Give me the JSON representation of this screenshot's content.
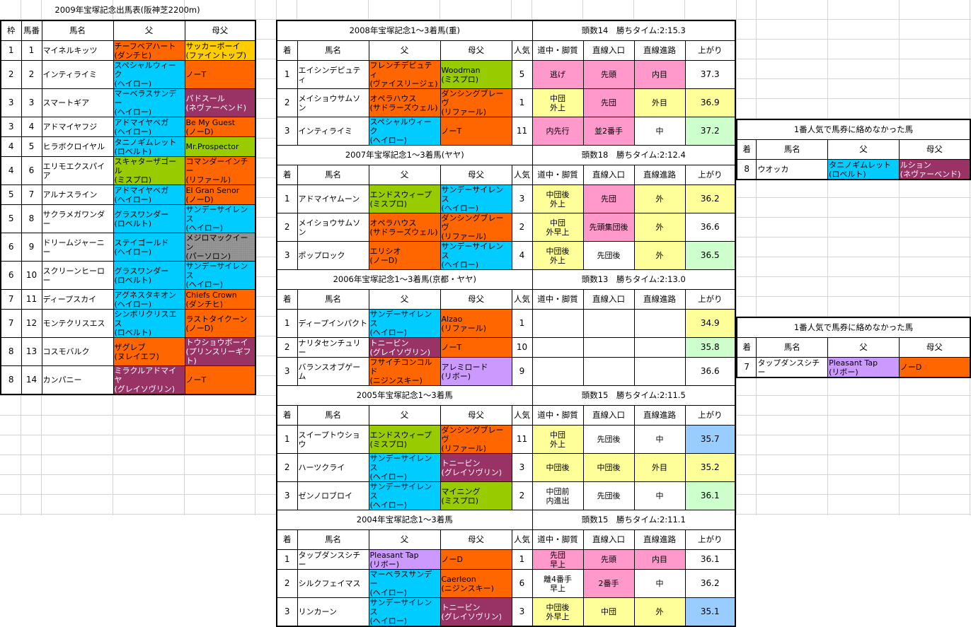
{
  "colors": {
    "orange": "#FF6600",
    "blue": "#00CCFF",
    "green": "#99CC00",
    "purple": "#993366",
    "gold": "#FFCC00",
    "gray": "#969696",
    "lavender": "#CC99FF",
    "pink": "#FF99CC",
    "yellow": "#FFFF99",
    "lightgreen": "#CCFFCC",
    "lightblue": "#99CCFF",
    "white": "#FFFFFF"
  },
  "entries": {
    "title": "2009年宝塚記念出馬表(阪神芝2200m)",
    "headers": [
      "枠",
      "馬番",
      "馬名",
      "父",
      "母父"
    ],
    "rows": [
      {
        "waku": "1",
        "num": "1",
        "name": "マイネルキッツ",
        "sire": "チーフベアハート\n(ダンチヒ)",
        "sire_color": "orange",
        "dam_sire": "サッカーボーイ\n(ファイントップ)",
        "dam_sire_color": "gold"
      },
      {
        "waku": "2",
        "num": "2",
        "name": "インティライミ",
        "sire": "スペシャルウィーク\n(ヘイロー)",
        "sire_color": "blue",
        "dam_sire": "ノーT",
        "dam_sire_color": "orange"
      },
      {
        "waku": "3",
        "num": "3",
        "name": "スマートギア",
        "sire": "マーベラスサンデー\n(ヘイロー)",
        "sire_color": "blue",
        "dam_sire": "パドスール\n(ネヴァーベンド)",
        "dam_sire_color": "purple"
      },
      {
        "waku": "3",
        "num": "4",
        "name": "アドマイヤフジ",
        "sire": "アドマイヤベガ\n(ヘイロー)",
        "sire_color": "blue",
        "dam_sire": "Be My Guest\n(ノーD)",
        "dam_sire_color": "orange"
      },
      {
        "waku": "4",
        "num": "5",
        "name": "ヒラボクロイヤル",
        "sire": "タニノギムレット\n(ロベルト)",
        "sire_color": "blue",
        "dam_sire": "Mr.Prospector",
        "dam_sire_color": "green"
      },
      {
        "waku": "4",
        "num": "6",
        "name": "エリモエクスパイア",
        "sire": "スキャターザゴール\n(ミスプロ)",
        "sire_color": "green",
        "dam_sire": "コマンダーインチー\n(リファール)",
        "dam_sire_color": "orange"
      },
      {
        "waku": "5",
        "num": "7",
        "name": "アルナスライン",
        "sire": "アドマイヤベガ\n(ヘイロー)",
        "sire_color": "blue",
        "dam_sire": "El Gran Senor\n(ノーD)",
        "dam_sire_color": "orange"
      },
      {
        "waku": "5",
        "num": "8",
        "name": "サクラメガワンダー",
        "sire": "グラスワンダー\n(ロベルト)",
        "sire_color": "blue",
        "dam_sire": "サンデーサイレンス\n(ヘイロー)",
        "dam_sire_color": "blue"
      },
      {
        "waku": "6",
        "num": "9",
        "name": "ドリームジャーニー",
        "sire": "ステイゴールド\n(ヘイロー)",
        "sire_color": "blue",
        "dam_sire": "メジロマックイーン\n(パーソロン)",
        "dam_sire_color": "gray"
      },
      {
        "waku": "6",
        "num": "10",
        "name": "スクリーンヒーロー",
        "sire": "グラスワンダー\n(ロベルト)",
        "sire_color": "blue",
        "dam_sire": "サンデーサイレンス\n(ヘイロー)",
        "dam_sire_color": "blue"
      },
      {
        "waku": "7",
        "num": "11",
        "name": "ディープスカイ",
        "sire": "アグネスタキオン\n(ヘイロー)",
        "sire_color": "blue",
        "dam_sire": "Chiefs Crown\n(ダンチヒ)",
        "dam_sire_color": "orange"
      },
      {
        "waku": "7",
        "num": "12",
        "name": "モンテクリスエス",
        "sire": "シンボリクリスエス\n(ロベルト)",
        "sire_color": "blue",
        "dam_sire": "ラストタイクーン\n(ノーD)",
        "dam_sire_color": "orange"
      },
      {
        "waku": "8",
        "num": "13",
        "name": "コスモバルク",
        "sire": "ザグレブ\n(ヌレイエフ)",
        "sire_color": "orange",
        "dam_sire": "トウショウボーイ\n(プリンスリーギフト)",
        "dam_sire_color": "purple"
      },
      {
        "waku": "8",
        "num": "14",
        "name": "カンパニー",
        "sire": "ミラクルアドマイヤ\n(グレイソヴリン)",
        "sire_color": "purple",
        "dam_sire": "ノーT",
        "dam_sire_color": "orange"
      }
    ]
  },
  "results": {
    "headers": [
      "着",
      "馬名",
      "父",
      "母父",
      "人気",
      "道中・脚質",
      "直線入口",
      "直線進路",
      "上がり"
    ],
    "blocks": [
      {
        "title": "2008年宝塚記念1〜3着馬(重)",
        "info": "頭数14　勝ちタイム:2:15.3",
        "rows": [
          {
            "rank": "1",
            "name": "エイシンデピュティ",
            "sire": "フレンチデピュティ\n(ヴァイスリージェ)",
            "sire_color": "orange",
            "dam_sire": "Woodman\n(ミスプロ)",
            "dam_sire_color": "green",
            "pop": "5",
            "style": "逃げ",
            "style_color": "pink",
            "entry": "先頭",
            "entry_color": "pink",
            "course": "内目",
            "course_color": "pink",
            "last3f": "37.3",
            "last3f_color": "white"
          },
          {
            "rank": "2",
            "name": "メイショウサムソン",
            "sire": "オペラハウス\n(サドラーズウェル)",
            "sire_color": "orange",
            "dam_sire": "ダンシングブレーヴ\n(リファール)",
            "dam_sire_color": "orange",
            "pop": "1",
            "style": "中団\n外上",
            "style_color": "yellow",
            "entry": "先団",
            "entry_color": "pink",
            "course": "外目",
            "course_color": "yellow",
            "last3f": "36.9",
            "last3f_color": "yellow"
          },
          {
            "rank": "3",
            "name": "インティライミ",
            "sire": "スペシャルウィーク\n(ヘイロー)",
            "sire_color": "blue",
            "dam_sire": "ノーT",
            "dam_sire_color": "orange",
            "pop": "11",
            "style": "内先行",
            "style_color": "pink",
            "entry": "並2番手",
            "entry_color": "pink",
            "course": "中",
            "course_color": "white",
            "last3f": "37.2",
            "last3f_color": "lightgreen"
          }
        ]
      },
      {
        "title": "2007年宝塚記念1〜3着馬(ヤヤ)",
        "info": "頭数18　勝ちタイム:2:12.4",
        "rows": [
          {
            "rank": "1",
            "name": "アドマイヤムーン",
            "sire": "エンドスウィープ\n(ミスプロ)",
            "sire_color": "green",
            "dam_sire": "サンデーサイレンス\n(ヘイロー)",
            "dam_sire_color": "blue",
            "pop": "3",
            "style": "中団後\n外上",
            "style_color": "yellow",
            "entry": "先団",
            "entry_color": "pink",
            "course": "外",
            "course_color": "yellow",
            "last3f": "36.2",
            "last3f_color": "yellow"
          },
          {
            "rank": "2",
            "name": "メイショウサムソン",
            "sire": "オペラハウス\n(サドラーズウェル)",
            "sire_color": "orange",
            "dam_sire": "ダンシングブレーヴ\n(リファール)",
            "dam_sire_color": "orange",
            "pop": "2",
            "style": "中団\n外早上",
            "style_color": "yellow",
            "entry": "先頭集団後",
            "entry_color": "pink",
            "course": "外",
            "course_color": "yellow",
            "last3f": "36.6",
            "last3f_color": "white"
          },
          {
            "rank": "3",
            "name": "ポップロック",
            "sire": "エリシオ\n(ノーD)",
            "sire_color": "orange",
            "dam_sire": "サンデーサイレンス\n(ヘイロー)",
            "dam_sire_color": "blue",
            "pop": "4",
            "style": "中団後\n外上",
            "style_color": "yellow",
            "entry": "先団後",
            "entry_color": "white",
            "course": "外",
            "course_color": "yellow",
            "last3f": "36.5",
            "last3f_color": "lightgreen"
          }
        ]
      },
      {
        "title": "2006年宝塚記念1〜3着馬(京都・ヤヤ)",
        "info": "頭数13　勝ちタイム:2:13.0",
        "rows": [
          {
            "rank": "1",
            "name": "ディープインパクト",
            "sire": "サンデーサイレンス\n(ヘイロー)",
            "sire_color": "blue",
            "dam_sire": "Alzao\n(リファール)",
            "dam_sire_color": "orange",
            "pop": "1",
            "style": "",
            "style_color": "white",
            "entry": "",
            "entry_color": "white",
            "course": "",
            "course_color": "white",
            "last3f": "34.9",
            "last3f_color": "yellow"
          },
          {
            "rank": "2",
            "name": "ナリタセンチュリー",
            "sire": "トニービン\n(グレイソヴリン)",
            "sire_color": "purple",
            "dam_sire": "ノーT",
            "dam_sire_color": "orange",
            "pop": "10",
            "style": "",
            "style_color": "white",
            "entry": "",
            "entry_color": "white",
            "course": "",
            "course_color": "white",
            "last3f": "35.8",
            "last3f_color": "lightgreen"
          },
          {
            "rank": "3",
            "name": "バランスオブゲーム",
            "sire": "フサイチコンコルド\n(ニジンスキー)",
            "sire_color": "orange",
            "dam_sire": "アレミロード\n(リボー)",
            "dam_sire_color": "lavender",
            "pop": "9",
            "style": "",
            "style_color": "white",
            "entry": "",
            "entry_color": "white",
            "course": "",
            "course_color": "white",
            "last3f": "36.6",
            "last3f_color": "white"
          }
        ]
      },
      {
        "title": "2005年宝塚記念1〜3着馬",
        "info": "頭数15　勝ちタイム:2:11.5",
        "rows": [
          {
            "rank": "1",
            "name": "スイープトウショウ",
            "sire": "エンドスウィープ\n(ミスプロ)",
            "sire_color": "green",
            "dam_sire": "ダンシングブレーヴ\n(リファール)",
            "dam_sire_color": "orange",
            "pop": "11",
            "style": "中団\n外上",
            "style_color": "yellow",
            "entry": "先団後",
            "entry_color": "white",
            "course": "中",
            "course_color": "white",
            "last3f": "35.7",
            "last3f_color": "lightblue"
          },
          {
            "rank": "2",
            "name": "ハーツクライ",
            "sire": "サンデーサイレンス\n(ヘイロー)",
            "sire_color": "blue",
            "dam_sire": "トニービン\n(グレイソヴリン)",
            "dam_sire_color": "purple",
            "pop": "3",
            "style": "中団後",
            "style_color": "yellow",
            "entry": "中団後",
            "entry_color": "yellow",
            "course": "外目",
            "course_color": "yellow",
            "last3f": "35.2",
            "last3f_color": "yellow"
          },
          {
            "rank": "3",
            "name": "ゼンノロブロイ",
            "sire": "サンデーサイレンス\n(ヘイロー)",
            "sire_color": "blue",
            "dam_sire": "マイニング\n(ミスプロ)",
            "dam_sire_color": "green",
            "pop": "2",
            "style": "中団前\n内進出",
            "style_color": "white",
            "entry": "先団後",
            "entry_color": "white",
            "course": "中",
            "course_color": "white",
            "last3f": "36.1",
            "last3f_color": "lightgreen"
          }
        ]
      },
      {
        "title": "2004年宝塚記念1〜3着馬",
        "info": "頭数15　勝ちタイム:2:11.1",
        "rows": [
          {
            "rank": "1",
            "name": "タップダンスシチー",
            "sire": "Pleasant Tap\n(リボー)",
            "sire_color": "lavender",
            "dam_sire": "ノーD",
            "dam_sire_color": "orange",
            "pop": "1",
            "style": "先団\n早上",
            "style_color": "pink",
            "entry": "先頭",
            "entry_color": "pink",
            "course": "内目",
            "course_color": "pink",
            "last3f": "36.1",
            "last3f_color": "white"
          },
          {
            "rank": "2",
            "name": "シルクフェイマス",
            "sire": "マーベラスサンデー\n(ヘイロー)",
            "sire_color": "blue",
            "dam_sire": "Caerleon\n(ニジンスキー)",
            "dam_sire_color": "orange",
            "pop": "6",
            "style": "離4番手\n早上",
            "style_color": "white",
            "entry": "2番手",
            "entry_color": "pink",
            "course": "中",
            "course_color": "white",
            "last3f": "36.2",
            "last3f_color": "white"
          },
          {
            "rank": "3",
            "name": "リンカーン",
            "sire": "サンデーサイレンス\n(ヘイロー)",
            "sire_color": "blue",
            "dam_sire": "トニービン\n(グレイソヴリン)",
            "dam_sire_color": "purple",
            "pop": "3",
            "style": "中団後\n外早上",
            "style_color": "yellow",
            "entry": "中団",
            "entry_color": "yellow",
            "course": "外",
            "course_color": "yellow",
            "last3f": "35.1",
            "last3f_color": "lightblue"
          }
        ]
      }
    ]
  },
  "favorites_out": {
    "headers": [
      "着",
      "馬名",
      "父",
      "母父"
    ],
    "tables": [
      {
        "title": "1番人気で馬券に絡めなかった馬",
        "rows": [
          {
            "rank": "8",
            "name": "ウオッカ",
            "sire": "タニノギムレット\n(ロベルト)",
            "sire_color": "blue",
            "dam_sire": "ルション\n(ネヴァーベンド)",
            "dam_sire_color": "purple"
          }
        ]
      },
      {
        "title": "1番人気で馬券に絡めなかった馬",
        "rows": [
          {
            "rank": "7",
            "name": "タップダンスシチー",
            "sire": "Pleasant Tap\n(リボー)",
            "sire_color": "lavender",
            "dam_sire": "ノーD",
            "dam_sire_color": "orange"
          }
        ]
      }
    ]
  }
}
